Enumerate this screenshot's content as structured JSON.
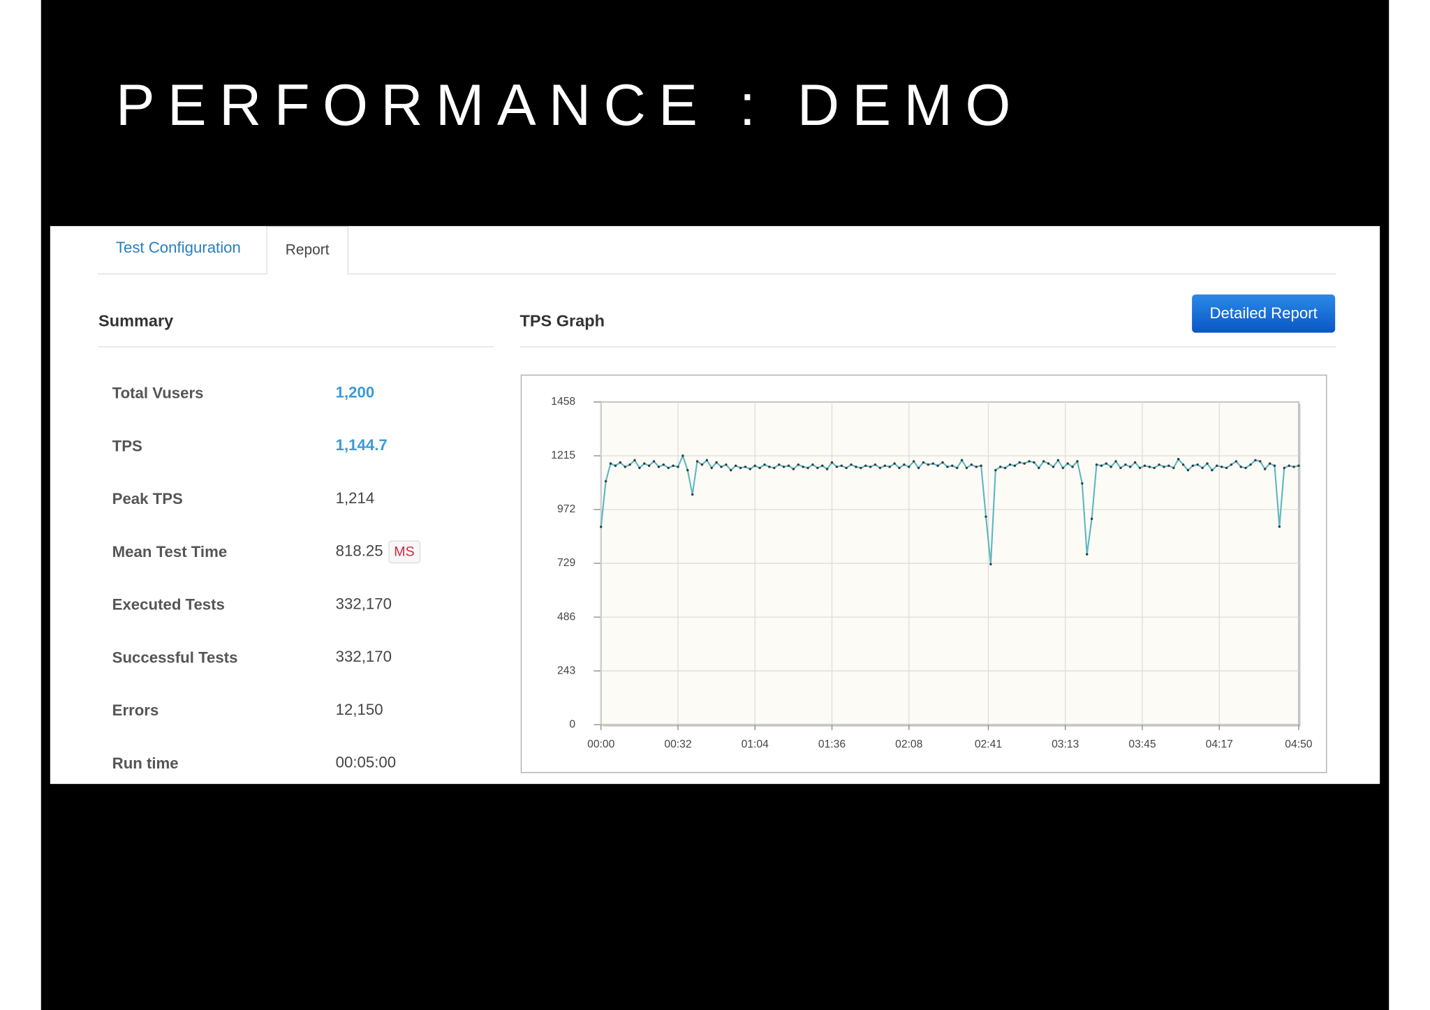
{
  "title": "PERFORMANCE : DEMO",
  "tabs": [
    "Test Configuration",
    "Report"
  ],
  "summary": {
    "heading": "Summary",
    "rows": [
      {
        "label": "Total Vusers",
        "value": "1,200"
      },
      {
        "label": "TPS",
        "value": "1,144.7"
      },
      {
        "label": "Peak TPS",
        "value": "1,214"
      },
      {
        "label": "Mean Test Time",
        "value": "818.25",
        "unit": "MS"
      },
      {
        "label": "Executed Tests",
        "value": "332,170"
      },
      {
        "label": "Successful Tests",
        "value": "332,170"
      },
      {
        "label": "Errors",
        "value": "12,150"
      },
      {
        "label": "Run time",
        "value": "00:05:00"
      }
    ]
  },
  "graph": {
    "heading": "TPS Graph",
    "button": "Detailed Report"
  },
  "chart_data": {
    "type": "line",
    "color": "#5bb7c1",
    "marker_color": "#2e3d3f",
    "grid": true,
    "xlim": [
      0,
      290
    ],
    "ylim": [
      0,
      1458
    ],
    "xticks": [
      {
        "value": 0,
        "label": "00:00"
      },
      {
        "value": 32,
        "label": "00:32"
      },
      {
        "value": 64,
        "label": "01:04"
      },
      {
        "value": 96,
        "label": "01:36"
      },
      {
        "value": 128,
        "label": "02:08"
      },
      {
        "value": 161,
        "label": "02:41"
      },
      {
        "value": 193,
        "label": "03:13"
      },
      {
        "value": 225,
        "label": "03:45"
      },
      {
        "value": 257,
        "label": "04:17"
      },
      {
        "value": 290,
        "label": "04:50"
      }
    ],
    "yticks": [
      0,
      243,
      486,
      729,
      972,
      1215,
      1458
    ],
    "x": [
      0,
      2,
      4,
      6,
      8,
      10,
      12,
      14,
      16,
      18,
      20,
      22,
      24,
      26,
      28,
      30,
      32,
      34,
      36,
      38,
      40,
      42,
      44,
      46,
      48,
      50,
      52,
      54,
      56,
      58,
      60,
      62,
      64,
      66,
      68,
      70,
      72,
      74,
      76,
      78,
      80,
      82,
      84,
      86,
      88,
      90,
      92,
      94,
      96,
      98,
      100,
      102,
      104,
      106,
      108,
      110,
      112,
      114,
      116,
      118,
      120,
      122,
      124,
      126,
      128,
      130,
      132,
      134,
      136,
      138,
      140,
      142,
      144,
      146,
      148,
      150,
      152,
      154,
      156,
      158,
      160,
      162,
      164,
      166,
      168,
      170,
      172,
      174,
      176,
      178,
      180,
      182,
      184,
      186,
      188,
      190,
      192,
      194,
      196,
      198,
      200,
      202,
      204,
      206,
      208,
      210,
      212,
      214,
      216,
      218,
      220,
      222,
      224,
      226,
      228,
      230,
      232,
      234,
      236,
      238,
      240,
      242,
      244,
      246,
      248,
      250,
      252,
      254,
      256,
      258,
      260,
      262,
      264,
      266,
      268,
      270,
      272,
      274,
      276,
      278,
      280,
      282,
      284,
      286,
      288,
      290
    ],
    "values": [
      894,
      1100,
      1180,
      1170,
      1185,
      1165,
      1175,
      1195,
      1160,
      1180,
      1170,
      1190,
      1165,
      1175,
      1160,
      1170,
      1165,
      1215,
      1150,
      1040,
      1190,
      1175,
      1195,
      1160,
      1185,
      1165,
      1175,
      1150,
      1170,
      1160,
      1165,
      1155,
      1170,
      1160,
      1175,
      1165,
      1160,
      1175,
      1165,
      1170,
      1155,
      1175,
      1165,
      1160,
      1175,
      1160,
      1170,
      1155,
      1185,
      1165,
      1170,
      1160,
      1175,
      1165,
      1160,
      1170,
      1165,
      1175,
      1160,
      1170,
      1165,
      1180,
      1160,
      1175,
      1165,
      1190,
      1160,
      1185,
      1175,
      1180,
      1170,
      1185,
      1165,
      1170,
      1160,
      1195,
      1160,
      1175,
      1165,
      1170,
      940,
      725,
      1150,
      1165,
      1160,
      1175,
      1170,
      1185,
      1180,
      1190,
      1185,
      1160,
      1190,
      1180,
      1165,
      1195,
      1160,
      1180,
      1165,
      1190,
      1090,
      770,
      930,
      1175,
      1170,
      1180,
      1165,
      1190,
      1160,
      1175,
      1165,
      1185,
      1160,
      1170,
      1165,
      1160,
      1175,
      1165,
      1170,
      1160,
      1200,
      1175,
      1150,
      1170,
      1175,
      1160,
      1180,
      1150,
      1170,
      1165,
      1160,
      1175,
      1190,
      1165,
      1160,
      1175,
      1195,
      1190,
      1155,
      1180,
      1170,
      895,
      1160,
      1170,
      1165,
      1170
    ]
  }
}
